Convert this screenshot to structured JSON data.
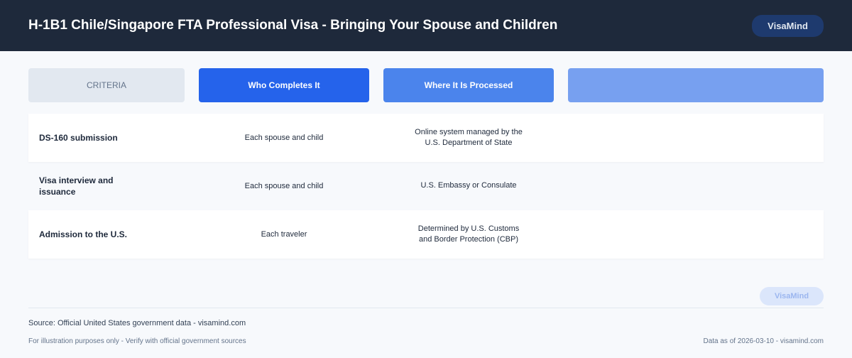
{
  "header": {
    "title": "H-1B1 Chile/Singapore FTA Professional Visa - Bringing Your Spouse and Children",
    "brand": "VisaMind"
  },
  "columns": [
    "CRITERIA",
    "Who Completes It",
    "Where It Is Processed",
    ""
  ],
  "rows": [
    {
      "criteria": "DS-160 submission",
      "who": "Each spouse and child",
      "where": "Online system managed by the U.S. Department of State"
    },
    {
      "criteria": "Visa interview and issuance",
      "who": "Each spouse and child",
      "where": "U.S. Embassy or Consulate"
    },
    {
      "criteria": "Admission to the U.S.",
      "who": "Each traveler",
      "where": "Determined by U.S. Customs and Border Protection (CBP)"
    }
  ],
  "watermark": "VisaMind",
  "footer": {
    "source": "Source: Official United States government data - visamind.com",
    "disclaimer": "For illustration purposes only - Verify with official government sources",
    "as_of": "Data as of 2026-03-10 - visamind.com"
  }
}
